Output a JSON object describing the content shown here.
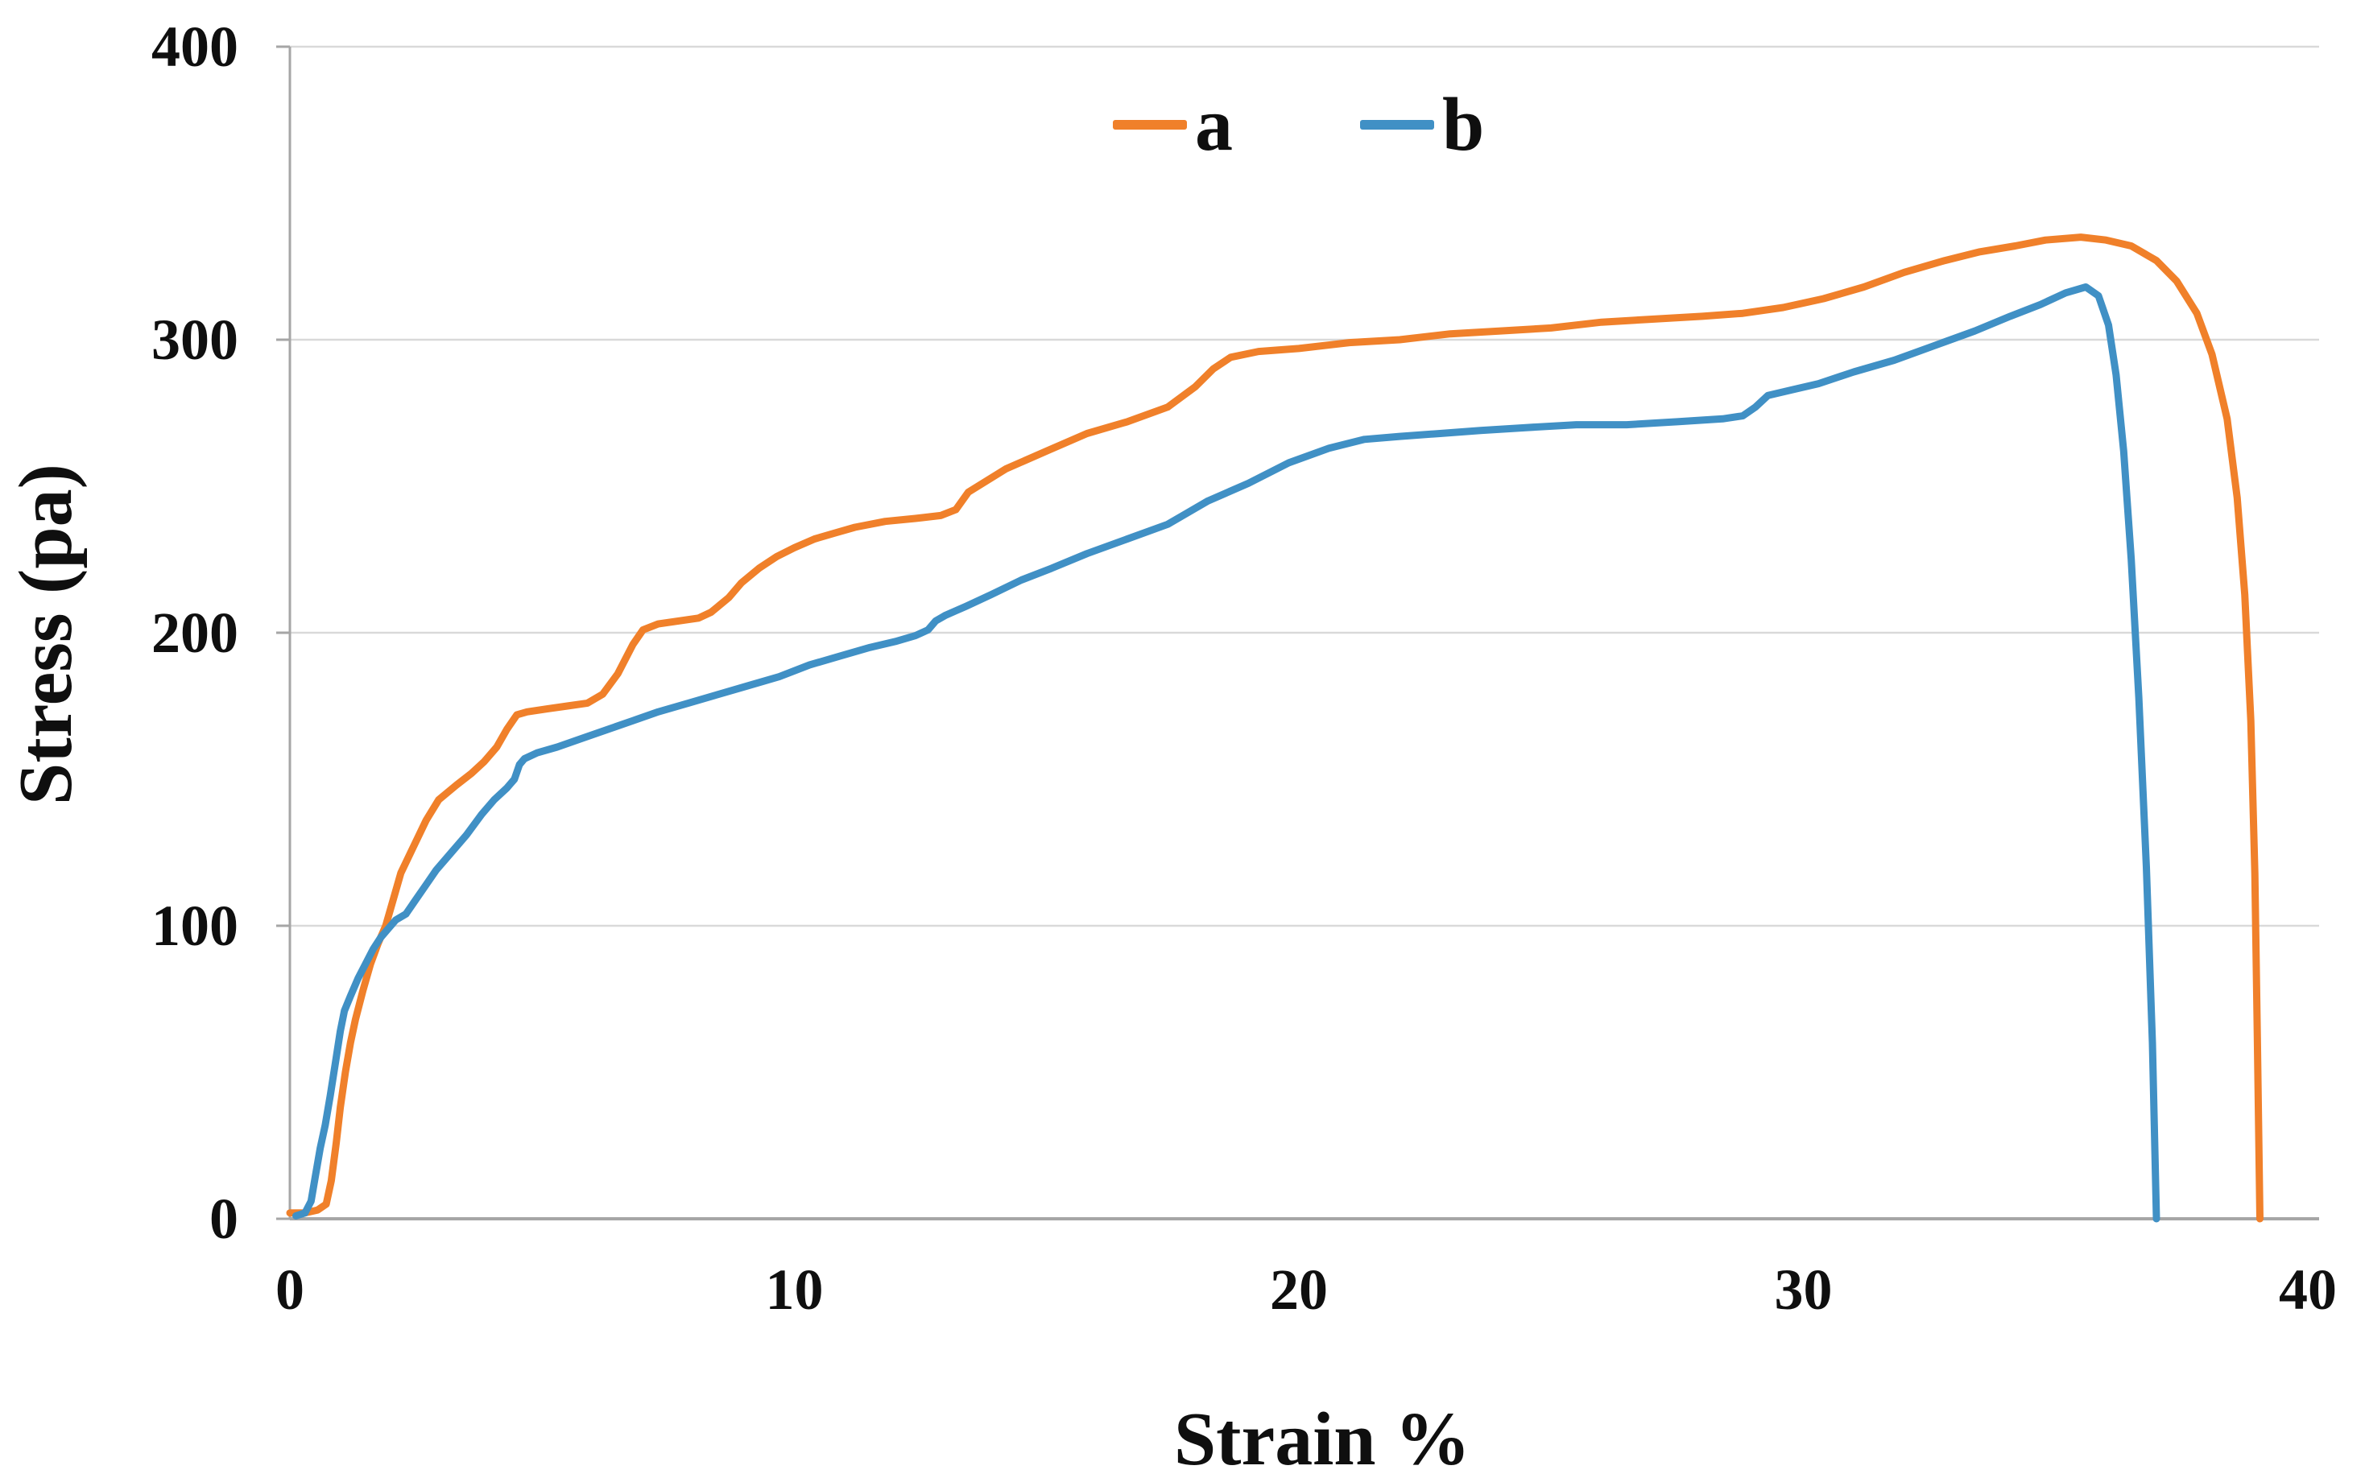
{
  "figure": {
    "background": "#ffffff"
  },
  "legend": {
    "items": [
      {
        "label": "a",
        "color": "#F0802A"
      },
      {
        "label": "b",
        "color": "#4090C5"
      }
    ]
  },
  "axes": {
    "x": {
      "title": "Strain %",
      "ticks": [
        "0",
        "10",
        "20",
        "30",
        "40"
      ]
    },
    "y": {
      "title": "Stress (pa)",
      "ticks": [
        "400",
        "300",
        "200",
        "100",
        "0"
      ]
    }
  },
  "colors": {
    "gridline": "#d9d9d9",
    "axis_line": "#a6a6a6",
    "text": "#0f0f0f",
    "series_a": "#F0802A",
    "series_b": "#4090C5"
  },
  "chart_data": {
    "type": "line",
    "title": "",
    "xlabel": "Strain %",
    "ylabel": "Stress (pa)",
    "xlim": [
      0,
      40
    ],
    "ylim": [
      0,
      400
    ],
    "x_ticks": [
      0,
      10,
      20,
      30,
      40
    ],
    "y_ticks": [
      0,
      100,
      200,
      300,
      400
    ],
    "grid": "horizontal-only",
    "legend_position": "top-center",
    "series": [
      {
        "name": "a",
        "color": "#F0802A",
        "points": [
          [
            0,
            2
          ],
          [
            0.3,
            2
          ],
          [
            0.55,
            3
          ],
          [
            0.72,
            5
          ],
          [
            0.82,
            13
          ],
          [
            0.92,
            26
          ],
          [
            1.0,
            38
          ],
          [
            1.1,
            50
          ],
          [
            1.2,
            60
          ],
          [
            1.3,
            68
          ],
          [
            1.45,
            78
          ],
          [
            1.6,
            87
          ],
          [
            1.75,
            94
          ],
          [
            1.9,
            100
          ],
          [
            2.05,
            109
          ],
          [
            2.2,
            118
          ],
          [
            2.45,
            127
          ],
          [
            2.7,
            136
          ],
          [
            2.95,
            143
          ],
          [
            3.3,
            148
          ],
          [
            3.6,
            152
          ],
          [
            3.85,
            156
          ],
          [
            4.1,
            161
          ],
          [
            4.3,
            167
          ],
          [
            4.5,
            172
          ],
          [
            4.7,
            173
          ],
          [
            5.1,
            174
          ],
          [
            5.5,
            175
          ],
          [
            5.9,
            176
          ],
          [
            6.2,
            179
          ],
          [
            6.5,
            186
          ],
          [
            6.8,
            196
          ],
          [
            7.0,
            201
          ],
          [
            7.3,
            203
          ],
          [
            7.7,
            204
          ],
          [
            8.1,
            205
          ],
          [
            8.35,
            207
          ],
          [
            8.7,
            212
          ],
          [
            8.95,
            217
          ],
          [
            9.3,
            222
          ],
          [
            9.65,
            226
          ],
          [
            10.0,
            229
          ],
          [
            10.4,
            232
          ],
          [
            10.8,
            234
          ],
          [
            11.2,
            236
          ],
          [
            11.8,
            238
          ],
          [
            12.4,
            239
          ],
          [
            12.9,
            240
          ],
          [
            13.2,
            242
          ],
          [
            13.45,
            248
          ],
          [
            14.2,
            256
          ],
          [
            15.0,
            262
          ],
          [
            15.8,
            268
          ],
          [
            16.6,
            272
          ],
          [
            17.4,
            277
          ],
          [
            17.95,
            284
          ],
          [
            18.3,
            290
          ],
          [
            18.65,
            294
          ],
          [
            19.2,
            296
          ],
          [
            20.0,
            297
          ],
          [
            21.0,
            299
          ],
          [
            22.0,
            300
          ],
          [
            23.0,
            302
          ],
          [
            24.0,
            303
          ],
          [
            25.0,
            304
          ],
          [
            26.0,
            306
          ],
          [
            27.0,
            307
          ],
          [
            28.0,
            308
          ],
          [
            28.8,
            309
          ],
          [
            29.6,
            311
          ],
          [
            30.4,
            314
          ],
          [
            31.2,
            318
          ],
          [
            32.0,
            323
          ],
          [
            32.8,
            327
          ],
          [
            33.5,
            330
          ],
          [
            34.2,
            332
          ],
          [
            34.8,
            334
          ],
          [
            35.5,
            335
          ],
          [
            36.0,
            334
          ],
          [
            36.5,
            332
          ],
          [
            37.0,
            327
          ],
          [
            37.4,
            320
          ],
          [
            37.8,
            309
          ],
          [
            38.1,
            295
          ],
          [
            38.4,
            273
          ],
          [
            38.6,
            246
          ],
          [
            38.75,
            213
          ],
          [
            38.87,
            170
          ],
          [
            38.95,
            118
          ],
          [
            39.0,
            62
          ],
          [
            39.05,
            0
          ]
        ]
      },
      {
        "name": "b",
        "color": "#4090C5",
        "points": [
          [
            0.12,
            1
          ],
          [
            0.3,
            2
          ],
          [
            0.42,
            6
          ],
          [
            0.5,
            14
          ],
          [
            0.6,
            24
          ],
          [
            0.7,
            32
          ],
          [
            0.8,
            42
          ],
          [
            0.9,
            53
          ],
          [
            1.0,
            64
          ],
          [
            1.08,
            71
          ],
          [
            1.2,
            76
          ],
          [
            1.35,
            82
          ],
          [
            1.5,
            87
          ],
          [
            1.65,
            92
          ],
          [
            1.8,
            96
          ],
          [
            1.95,
            99
          ],
          [
            2.1,
            102
          ],
          [
            2.3,
            104
          ],
          [
            2.5,
            109
          ],
          [
            2.7,
            114
          ],
          [
            2.9,
            119
          ],
          [
            3.2,
            125
          ],
          [
            3.5,
            131
          ],
          [
            3.8,
            138
          ],
          [
            4.05,
            143
          ],
          [
            4.3,
            147
          ],
          [
            4.45,
            150
          ],
          [
            4.55,
            155
          ],
          [
            4.65,
            157
          ],
          [
            4.9,
            159
          ],
          [
            5.3,
            161
          ],
          [
            5.8,
            164
          ],
          [
            6.3,
            167
          ],
          [
            6.8,
            170
          ],
          [
            7.3,
            173
          ],
          [
            7.9,
            176
          ],
          [
            8.5,
            179
          ],
          [
            9.1,
            182
          ],
          [
            9.7,
            185
          ],
          [
            10.3,
            189
          ],
          [
            10.9,
            192
          ],
          [
            11.5,
            195
          ],
          [
            12.0,
            197
          ],
          [
            12.4,
            199
          ],
          [
            12.65,
            201
          ],
          [
            12.8,
            204
          ],
          [
            13.0,
            206
          ],
          [
            13.4,
            209
          ],
          [
            13.9,
            213
          ],
          [
            14.5,
            218
          ],
          [
            15.1,
            222
          ],
          [
            15.8,
            227
          ],
          [
            16.6,
            232
          ],
          [
            17.4,
            237
          ],
          [
            18.2,
            245
          ],
          [
            19.0,
            251
          ],
          [
            19.8,
            258
          ],
          [
            20.6,
            263
          ],
          [
            21.3,
            266
          ],
          [
            22.0,
            267
          ],
          [
            22.8,
            268
          ],
          [
            23.6,
            269
          ],
          [
            24.5,
            270
          ],
          [
            25.5,
            271
          ],
          [
            26.5,
            271
          ],
          [
            27.5,
            272
          ],
          [
            28.4,
            273
          ],
          [
            28.8,
            274
          ],
          [
            29.05,
            277
          ],
          [
            29.3,
            281
          ],
          [
            29.8,
            283
          ],
          [
            30.3,
            285
          ],
          [
            31.0,
            289
          ],
          [
            31.8,
            293
          ],
          [
            32.6,
            298
          ],
          [
            33.4,
            303
          ],
          [
            34.1,
            308
          ],
          [
            34.7,
            312
          ],
          [
            35.2,
            316
          ],
          [
            35.6,
            318
          ],
          [
            35.85,
            315
          ],
          [
            36.05,
            305
          ],
          [
            36.2,
            288
          ],
          [
            36.35,
            262
          ],
          [
            36.5,
            225
          ],
          [
            36.65,
            178
          ],
          [
            36.8,
            120
          ],
          [
            36.92,
            60
          ],
          [
            37.0,
            0
          ]
        ]
      }
    ]
  }
}
